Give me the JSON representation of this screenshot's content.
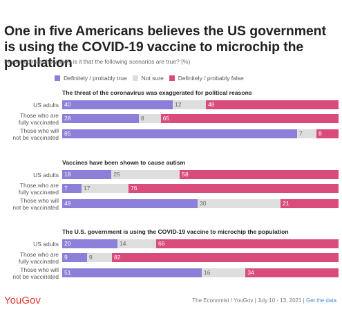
{
  "title": "One in five Americans believes the US government is using the COVID-19 vaccine to microchip the population",
  "subtitle": "In your opinion, how likely is it that the following scenarios are true? (%)",
  "legend": [
    {
      "name": "Definitely / probably true",
      "color": "#8b7fd9"
    },
    {
      "name": "Not sure",
      "color": "#dedede"
    },
    {
      "name": "Definitely / probably false",
      "color": "#d94b7b"
    }
  ],
  "footer": {
    "logo": "YouGov",
    "source": "The Economist / YouGov | July 10 - 13, 2021 | ",
    "link": "Get the data"
  },
  "chart_data": {
    "type": "bar",
    "stacked": true,
    "orientation": "horizontal",
    "categories": [
      "US adults",
      "Those who are fully vaccinated",
      "Those who will not be vaccinated"
    ],
    "category_lines": [
      [
        "US adults"
      ],
      [
        "Those who are",
        "fully vaccinated"
      ],
      [
        "Those who will",
        "not be vaccinated"
      ]
    ],
    "series_names": [
      "Definitely / probably true",
      "Not sure",
      "Definitely / probably false"
    ],
    "series_colors": [
      "#8b7fd9",
      "#dedede",
      "#d94b7b"
    ],
    "label_colors": [
      "#ffffff",
      "#666666",
      "#ffffff"
    ],
    "panels": [
      {
        "title": "The threat of the coronavirus was exaggerated for political reasons",
        "rows": [
          [
            40,
            12,
            48
          ],
          [
            28,
            8,
            65
          ],
          [
            85,
            7,
            8
          ]
        ]
      },
      {
        "title": "Vaccines have been shown to cause autism",
        "rows": [
          [
            18,
            25,
            58
          ],
          [
            7,
            17,
            76
          ],
          [
            49,
            30,
            21
          ]
        ]
      },
      {
        "title": "The U.S. government is using the COVID-19 vaccine to microchip the population",
        "rows": [
          [
            20,
            14,
            66
          ],
          [
            9,
            9,
            82
          ],
          [
            51,
            16,
            34
          ]
        ]
      }
    ]
  }
}
